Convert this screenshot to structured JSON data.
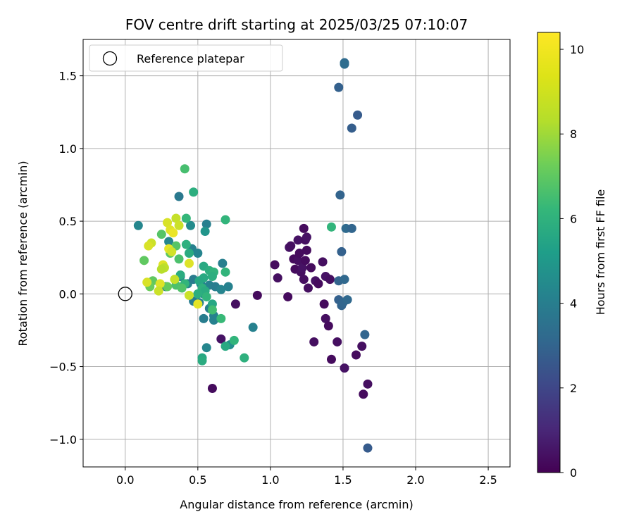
{
  "chart_data": {
    "type": "scatter",
    "title": "FOV centre drift starting at 2025/03/25 07:10:07",
    "xlabel": "Angular distance from reference (arcmin)",
    "ylabel": "Rotation from reference (arcmin)",
    "xlim": [
      -0.29,
      2.65
    ],
    "ylim": [
      -1.19,
      1.75
    ],
    "x_ticks": [
      0.0,
      0.5,
      1.0,
      1.5,
      2.0,
      2.5
    ],
    "x_tick_labels": [
      "0.0",
      "0.5",
      "1.0",
      "1.5",
      "2.0",
      "2.5"
    ],
    "y_ticks": [
      -1.0,
      -0.5,
      0.0,
      0.5,
      1.0,
      1.5
    ],
    "y_tick_labels": [
      "−1.0",
      "−0.5",
      "0.0",
      "0.5",
      "1.0",
      "1.5"
    ],
    "grid": true,
    "legend": {
      "placement": "upper-left",
      "entries": [
        {
          "label": "Reference platepar",
          "marker": "open-circle"
        }
      ]
    },
    "reference_point": {
      "x": 0.0,
      "y": 0.0
    },
    "colorbar": {
      "label": "Hours from first FF file",
      "colormap": "viridis",
      "range": [
        0,
        10.4
      ],
      "ticks": [
        0,
        2,
        4,
        6,
        8,
        10
      ],
      "tick_labels": [
        "0",
        "2",
        "4",
        "6",
        "8",
        "10"
      ]
    },
    "points": [
      {
        "x": 1.03,
        "y": 0.2,
        "h": 0.3
      },
      {
        "x": 1.05,
        "y": 0.11,
        "h": 0.4
      },
      {
        "x": 1.12,
        "y": -0.02,
        "h": 0.3
      },
      {
        "x": 1.13,
        "y": 0.32,
        "h": 0.5
      },
      {
        "x": 1.14,
        "y": 0.33,
        "h": 0.4
      },
      {
        "x": 1.16,
        "y": 0.24,
        "h": 0.3
      },
      {
        "x": 1.17,
        "y": 0.17,
        "h": 0.3
      },
      {
        "x": 1.19,
        "y": 0.37,
        "h": 0.5
      },
      {
        "x": 1.19,
        "y": 0.23,
        "h": 0.4
      },
      {
        "x": 1.2,
        "y": 0.28,
        "h": 0.3
      },
      {
        "x": 1.21,
        "y": 0.15,
        "h": 0.4
      },
      {
        "x": 1.22,
        "y": 0.18,
        "h": 0.5
      },
      {
        "x": 1.23,
        "y": 0.45,
        "h": 0.3
      },
      {
        "x": 1.23,
        "y": 0.1,
        "h": 0.4
      },
      {
        "x": 1.24,
        "y": 0.23,
        "h": 0.3
      },
      {
        "x": 1.24,
        "y": 0.37,
        "h": 0.4
      },
      {
        "x": 1.25,
        "y": 0.39,
        "h": 0.5
      },
      {
        "x": 1.25,
        "y": 0.3,
        "h": 0.3
      },
      {
        "x": 1.26,
        "y": 0.04,
        "h": 0.4
      },
      {
        "x": 1.28,
        "y": 0.18,
        "h": 0.3
      },
      {
        "x": 1.3,
        "y": -0.33,
        "h": 0.4
      },
      {
        "x": 1.31,
        "y": 0.09,
        "h": 0.5
      },
      {
        "x": 1.33,
        "y": 0.07,
        "h": 0.3
      },
      {
        "x": 1.36,
        "y": 0.22,
        "h": 0.4
      },
      {
        "x": 1.37,
        "y": -0.07,
        "h": 0.3
      },
      {
        "x": 1.38,
        "y": -0.17,
        "h": 0.4
      },
      {
        "x": 1.38,
        "y": 0.12,
        "h": 0.5
      },
      {
        "x": 1.4,
        "y": -0.22,
        "h": 0.3
      },
      {
        "x": 1.41,
        "y": 0.1,
        "h": 0.4
      },
      {
        "x": 1.42,
        "y": -0.45,
        "h": 0.3
      },
      {
        "x": 1.46,
        "y": -0.33,
        "h": 0.4
      },
      {
        "x": 1.51,
        "y": -0.51,
        "h": 0.5
      },
      {
        "x": 1.59,
        "y": -0.42,
        "h": 0.3
      },
      {
        "x": 1.63,
        "y": -0.36,
        "h": 0.4
      },
      {
        "x": 1.64,
        "y": -0.69,
        "h": 0.3
      },
      {
        "x": 1.67,
        "y": -0.62,
        "h": 0.4
      },
      {
        "x": 0.66,
        "y": -0.31,
        "h": 0.5
      },
      {
        "x": 0.6,
        "y": -0.65,
        "h": 0.3
      },
      {
        "x": 0.76,
        "y": -0.07,
        "h": 0.4
      },
      {
        "x": 0.91,
        "y": -0.01,
        "h": 0.3
      },
      {
        "x": 1.51,
        "y": 1.59,
        "h": 3.6
      },
      {
        "x": 1.51,
        "y": 1.58,
        "h": 3.7
      },
      {
        "x": 1.47,
        "y": 1.42,
        "h": 3.2
      },
      {
        "x": 1.6,
        "y": 1.23,
        "h": 3.0
      },
      {
        "x": 1.56,
        "y": 1.14,
        "h": 3.1
      },
      {
        "x": 1.48,
        "y": 0.68,
        "h": 3.3
      },
      {
        "x": 1.52,
        "y": 0.45,
        "h": 3.6
      },
      {
        "x": 1.56,
        "y": 0.45,
        "h": 3.4
      },
      {
        "x": 1.49,
        "y": 0.29,
        "h": 3.2
      },
      {
        "x": 1.47,
        "y": 0.09,
        "h": 3.3
      },
      {
        "x": 1.51,
        "y": 0.1,
        "h": 3.5
      },
      {
        "x": 1.47,
        "y": -0.04,
        "h": 3.2
      },
      {
        "x": 1.49,
        "y": -0.08,
        "h": 3.3
      },
      {
        "x": 1.5,
        "y": -0.06,
        "h": 3.4
      },
      {
        "x": 1.53,
        "y": -0.04,
        "h": 3.5
      },
      {
        "x": 1.65,
        "y": -0.28,
        "h": 3.4
      },
      {
        "x": 1.67,
        "y": -1.06,
        "h": 3.0
      },
      {
        "x": 0.09,
        "y": 0.47,
        "h": 4.8
      },
      {
        "x": 0.37,
        "y": 0.67,
        "h": 4.2
      },
      {
        "x": 0.45,
        "y": 0.47,
        "h": 5.0
      },
      {
        "x": 0.56,
        "y": 0.48,
        "h": 4.5
      },
      {
        "x": 0.55,
        "y": 0.43,
        "h": 5.4
      },
      {
        "x": 0.3,
        "y": 0.36,
        "h": 4.8
      },
      {
        "x": 0.46,
        "y": 0.31,
        "h": 4.6
      },
      {
        "x": 0.5,
        "y": 0.28,
        "h": 4.7
      },
      {
        "x": 0.67,
        "y": 0.21,
        "h": 4.5
      },
      {
        "x": 0.38,
        "y": 0.12,
        "h": 4.6
      },
      {
        "x": 0.43,
        "y": 0.07,
        "h": 4.7
      },
      {
        "x": 0.47,
        "y": 0.1,
        "h": 4.3
      },
      {
        "x": 0.52,
        "y": 0.07,
        "h": 4.6
      },
      {
        "x": 0.54,
        "y": 0.0,
        "h": 4.5
      },
      {
        "x": 0.58,
        "y": 0.06,
        "h": 4.6
      },
      {
        "x": 0.62,
        "y": 0.05,
        "h": 4.4
      },
      {
        "x": 0.66,
        "y": 0.03,
        "h": 4.7
      },
      {
        "x": 0.71,
        "y": 0.05,
        "h": 4.6
      },
      {
        "x": 0.47,
        "y": -0.05,
        "h": 4.4
      },
      {
        "x": 0.51,
        "y": -0.06,
        "h": 4.6
      },
      {
        "x": 0.58,
        "y": -0.1,
        "h": 4.5
      },
      {
        "x": 0.61,
        "y": -0.15,
        "h": 4.6
      },
      {
        "x": 0.54,
        "y": -0.17,
        "h": 4.4
      },
      {
        "x": 0.61,
        "y": -0.18,
        "h": 4.6
      },
      {
        "x": 0.88,
        "y": -0.23,
        "h": 4.6
      },
      {
        "x": 0.56,
        "y": -0.37,
        "h": 4.8
      },
      {
        "x": 0.72,
        "y": -0.35,
        "h": 5.1
      },
      {
        "x": 0.28,
        "y": 0.05,
        "h": 4.4
      },
      {
        "x": 0.47,
        "y": 0.7,
        "h": 6.5
      },
      {
        "x": 0.42,
        "y": 0.52,
        "h": 6.9
      },
      {
        "x": 0.69,
        "y": 0.51,
        "h": 6.8
      },
      {
        "x": 1.42,
        "y": 0.46,
        "h": 6.8
      },
      {
        "x": 0.42,
        "y": 0.34,
        "h": 6.6
      },
      {
        "x": 0.44,
        "y": 0.28,
        "h": 6.4
      },
      {
        "x": 0.54,
        "y": 0.19,
        "h": 6.3
      },
      {
        "x": 0.58,
        "y": 0.16,
        "h": 6.5
      },
      {
        "x": 0.61,
        "y": 0.15,
        "h": 6.7
      },
      {
        "x": 0.6,
        "y": 0.12,
        "h": 6.5
      },
      {
        "x": 0.69,
        "y": 0.15,
        "h": 6.8
      },
      {
        "x": 0.54,
        "y": 0.11,
        "h": 6.3
      },
      {
        "x": 0.51,
        "y": 0.09,
        "h": 6.2
      },
      {
        "x": 0.53,
        "y": 0.04,
        "h": 6.6
      },
      {
        "x": 0.55,
        "y": 0.02,
        "h": 6.4
      },
      {
        "x": 0.56,
        "y": -0.02,
        "h": 6.8
      },
      {
        "x": 0.6,
        "y": -0.07,
        "h": 6.2
      },
      {
        "x": 0.6,
        "y": -0.11,
        "h": 7.2
      },
      {
        "x": 0.66,
        "y": -0.17,
        "h": 7.0
      },
      {
        "x": 0.75,
        "y": -0.32,
        "h": 6.8
      },
      {
        "x": 0.69,
        "y": -0.36,
        "h": 6.3
      },
      {
        "x": 0.53,
        "y": -0.44,
        "h": 6.2
      },
      {
        "x": 0.53,
        "y": -0.46,
        "h": 6.4
      },
      {
        "x": 0.82,
        "y": -0.44,
        "h": 6.6
      },
      {
        "x": 0.38,
        "y": 0.13,
        "h": 6.4
      },
      {
        "x": 0.41,
        "y": 0.07,
        "h": 6.8
      },
      {
        "x": 0.5,
        "y": 0.0,
        "h": 6.5
      },
      {
        "x": 0.41,
        "y": 0.86,
        "h": 7.3
      },
      {
        "x": 0.25,
        "y": 0.41,
        "h": 7.6
      },
      {
        "x": 0.35,
        "y": 0.33,
        "h": 7.6
      },
      {
        "x": 0.31,
        "y": 0.28,
        "h": 7.7
      },
      {
        "x": 0.37,
        "y": 0.24,
        "h": 7.4
      },
      {
        "x": 0.13,
        "y": 0.23,
        "h": 7.8
      },
      {
        "x": 0.19,
        "y": 0.09,
        "h": 7.8
      },
      {
        "x": 0.29,
        "y": 0.05,
        "h": 7.9
      },
      {
        "x": 0.35,
        "y": 0.06,
        "h": 7.4
      },
      {
        "x": 0.17,
        "y": 0.05,
        "h": 8.0
      },
      {
        "x": 0.39,
        "y": 0.04,
        "h": 7.5
      },
      {
        "x": 0.29,
        "y": 0.49,
        "h": 9.8
      },
      {
        "x": 0.31,
        "y": 0.44,
        "h": 9.9
      },
      {
        "x": 0.33,
        "y": 0.42,
        "h": 10.1
      },
      {
        "x": 0.35,
        "y": 0.52,
        "h": 9.5
      },
      {
        "x": 0.37,
        "y": 0.47,
        "h": 9.6
      },
      {
        "x": 0.3,
        "y": 0.31,
        "h": 10.0
      },
      {
        "x": 0.32,
        "y": 0.29,
        "h": 9.7
      },
      {
        "x": 0.18,
        "y": 0.35,
        "h": 9.6
      },
      {
        "x": 0.16,
        "y": 0.33,
        "h": 9.8
      },
      {
        "x": 0.26,
        "y": 0.2,
        "h": 9.9
      },
      {
        "x": 0.27,
        "y": 0.18,
        "h": 9.4
      },
      {
        "x": 0.25,
        "y": 0.17,
        "h": 9.3
      },
      {
        "x": 0.44,
        "y": 0.21,
        "h": 9.9
      },
      {
        "x": 0.34,
        "y": 0.1,
        "h": 9.5
      },
      {
        "x": 0.15,
        "y": 0.08,
        "h": 9.8
      },
      {
        "x": 0.24,
        "y": 0.07,
        "h": 9.9
      },
      {
        "x": 0.23,
        "y": 0.02,
        "h": 9.6
      },
      {
        "x": 0.44,
        "y": -0.01,
        "h": 9.6
      },
      {
        "x": 0.5,
        "y": -0.07,
        "h": 10.0
      }
    ]
  }
}
